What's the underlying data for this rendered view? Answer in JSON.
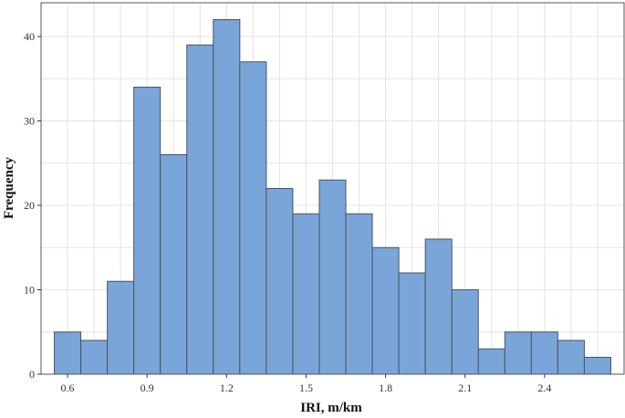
{
  "chart_data": {
    "type": "bar",
    "title": "",
    "xlabel": "IRI, m/km",
    "ylabel": "Frequency",
    "bin_width": 0.1,
    "bins": [
      {
        "start": 0.55,
        "end": 0.65,
        "value": 5
      },
      {
        "start": 0.65,
        "end": 0.75,
        "value": 4
      },
      {
        "start": 0.75,
        "end": 0.85,
        "value": 11
      },
      {
        "start": 0.85,
        "end": 0.95,
        "value": 34
      },
      {
        "start": 0.95,
        "end": 1.05,
        "value": 26
      },
      {
        "start": 1.05,
        "end": 1.15,
        "value": 39
      },
      {
        "start": 1.15,
        "end": 1.25,
        "value": 42
      },
      {
        "start": 1.25,
        "end": 1.35,
        "value": 37
      },
      {
        "start": 1.35,
        "end": 1.45,
        "value": 22
      },
      {
        "start": 1.45,
        "end": 1.55,
        "value": 19
      },
      {
        "start": 1.55,
        "end": 1.65,
        "value": 23
      },
      {
        "start": 1.65,
        "end": 1.75,
        "value": 19
      },
      {
        "start": 1.75,
        "end": 1.85,
        "value": 15
      },
      {
        "start": 1.85,
        "end": 1.95,
        "value": 12
      },
      {
        "start": 1.95,
        "end": 2.05,
        "value": 16
      },
      {
        "start": 2.05,
        "end": 2.15,
        "value": 10
      },
      {
        "start": 2.15,
        "end": 2.25,
        "value": 3
      },
      {
        "start": 2.25,
        "end": 2.35,
        "value": 5
      },
      {
        "start": 2.35,
        "end": 2.45,
        "value": 5
      },
      {
        "start": 2.45,
        "end": 2.55,
        "value": 4
      },
      {
        "start": 2.55,
        "end": 2.65,
        "value": 2
      }
    ],
    "xticks": [
      "0.6",
      "0.9",
      "1.2",
      "1.5",
      "1.8",
      "2.1",
      "2.4"
    ],
    "xtick_values": [
      0.6,
      0.9,
      1.2,
      1.5,
      1.8,
      2.1,
      2.4
    ],
    "yticks": [
      "0",
      "10",
      "20",
      "30",
      "40"
    ],
    "ytick_values": [
      0,
      10,
      20,
      30,
      40
    ],
    "xlim": [
      0.5,
      2.7
    ],
    "ylim": [
      0,
      44
    ],
    "grid": true,
    "legend": "none",
    "bar_color": "#7aa5d8",
    "bar_edge_color": "#4a5560"
  }
}
